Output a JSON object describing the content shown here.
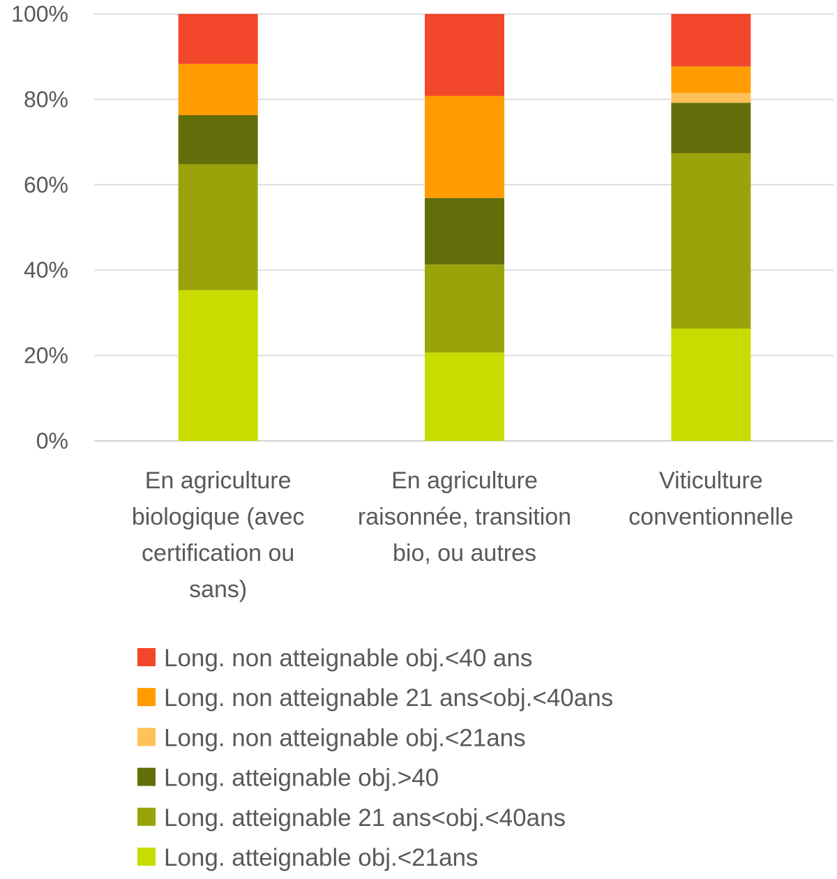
{
  "chart_data": {
    "type": "bar",
    "stacked": true,
    "percent": true,
    "ylim": [
      0,
      100
    ],
    "y_ticks": [
      "0%",
      "20%",
      "40%",
      "60%",
      "80%",
      "100%"
    ],
    "y_tick_values": [
      0,
      20,
      40,
      60,
      80,
      100
    ],
    "grid": true,
    "legend_position": "bottom",
    "categories": [
      [
        "En agriculture",
        "biologique (avec",
        "certification ou",
        "sans)"
      ],
      [
        "En agriculture",
        "raisonnée, transition",
        "bio, ou autres"
      ],
      [
        "Viticulture",
        "conventionnelle"
      ]
    ],
    "series": [
      {
        "name": "Long. atteignable obj.<21ans",
        "color": "#c8dc00",
        "values": [
          35.3,
          20.7,
          26.3
        ]
      },
      {
        "name": "Long. atteignable 21 ans<obj.<40ans",
        "color": "#9aa40a",
        "values": [
          29.5,
          20.6,
          41.1
        ]
      },
      {
        "name": "Long. atteignable obj.>40",
        "color": "#636e0a",
        "values": [
          11.5,
          15.6,
          11.8
        ]
      },
      {
        "name": "Long. non atteignable obj.<21ans",
        "color": "#ffc25a",
        "values": [
          0,
          0,
          2.3
        ]
      },
      {
        "name": "Long. non atteignable 21 ans<obj.<40ans",
        "color": "#ff9c00",
        "values": [
          12.0,
          23.9,
          6.2
        ]
      },
      {
        "name": "Long. non atteignable obj.<40 ans",
        "color": "#f2472a",
        "values": [
          11.7,
          19.2,
          12.3
        ]
      }
    ],
    "legend_order": [
      5,
      4,
      3,
      2,
      1,
      0
    ]
  }
}
